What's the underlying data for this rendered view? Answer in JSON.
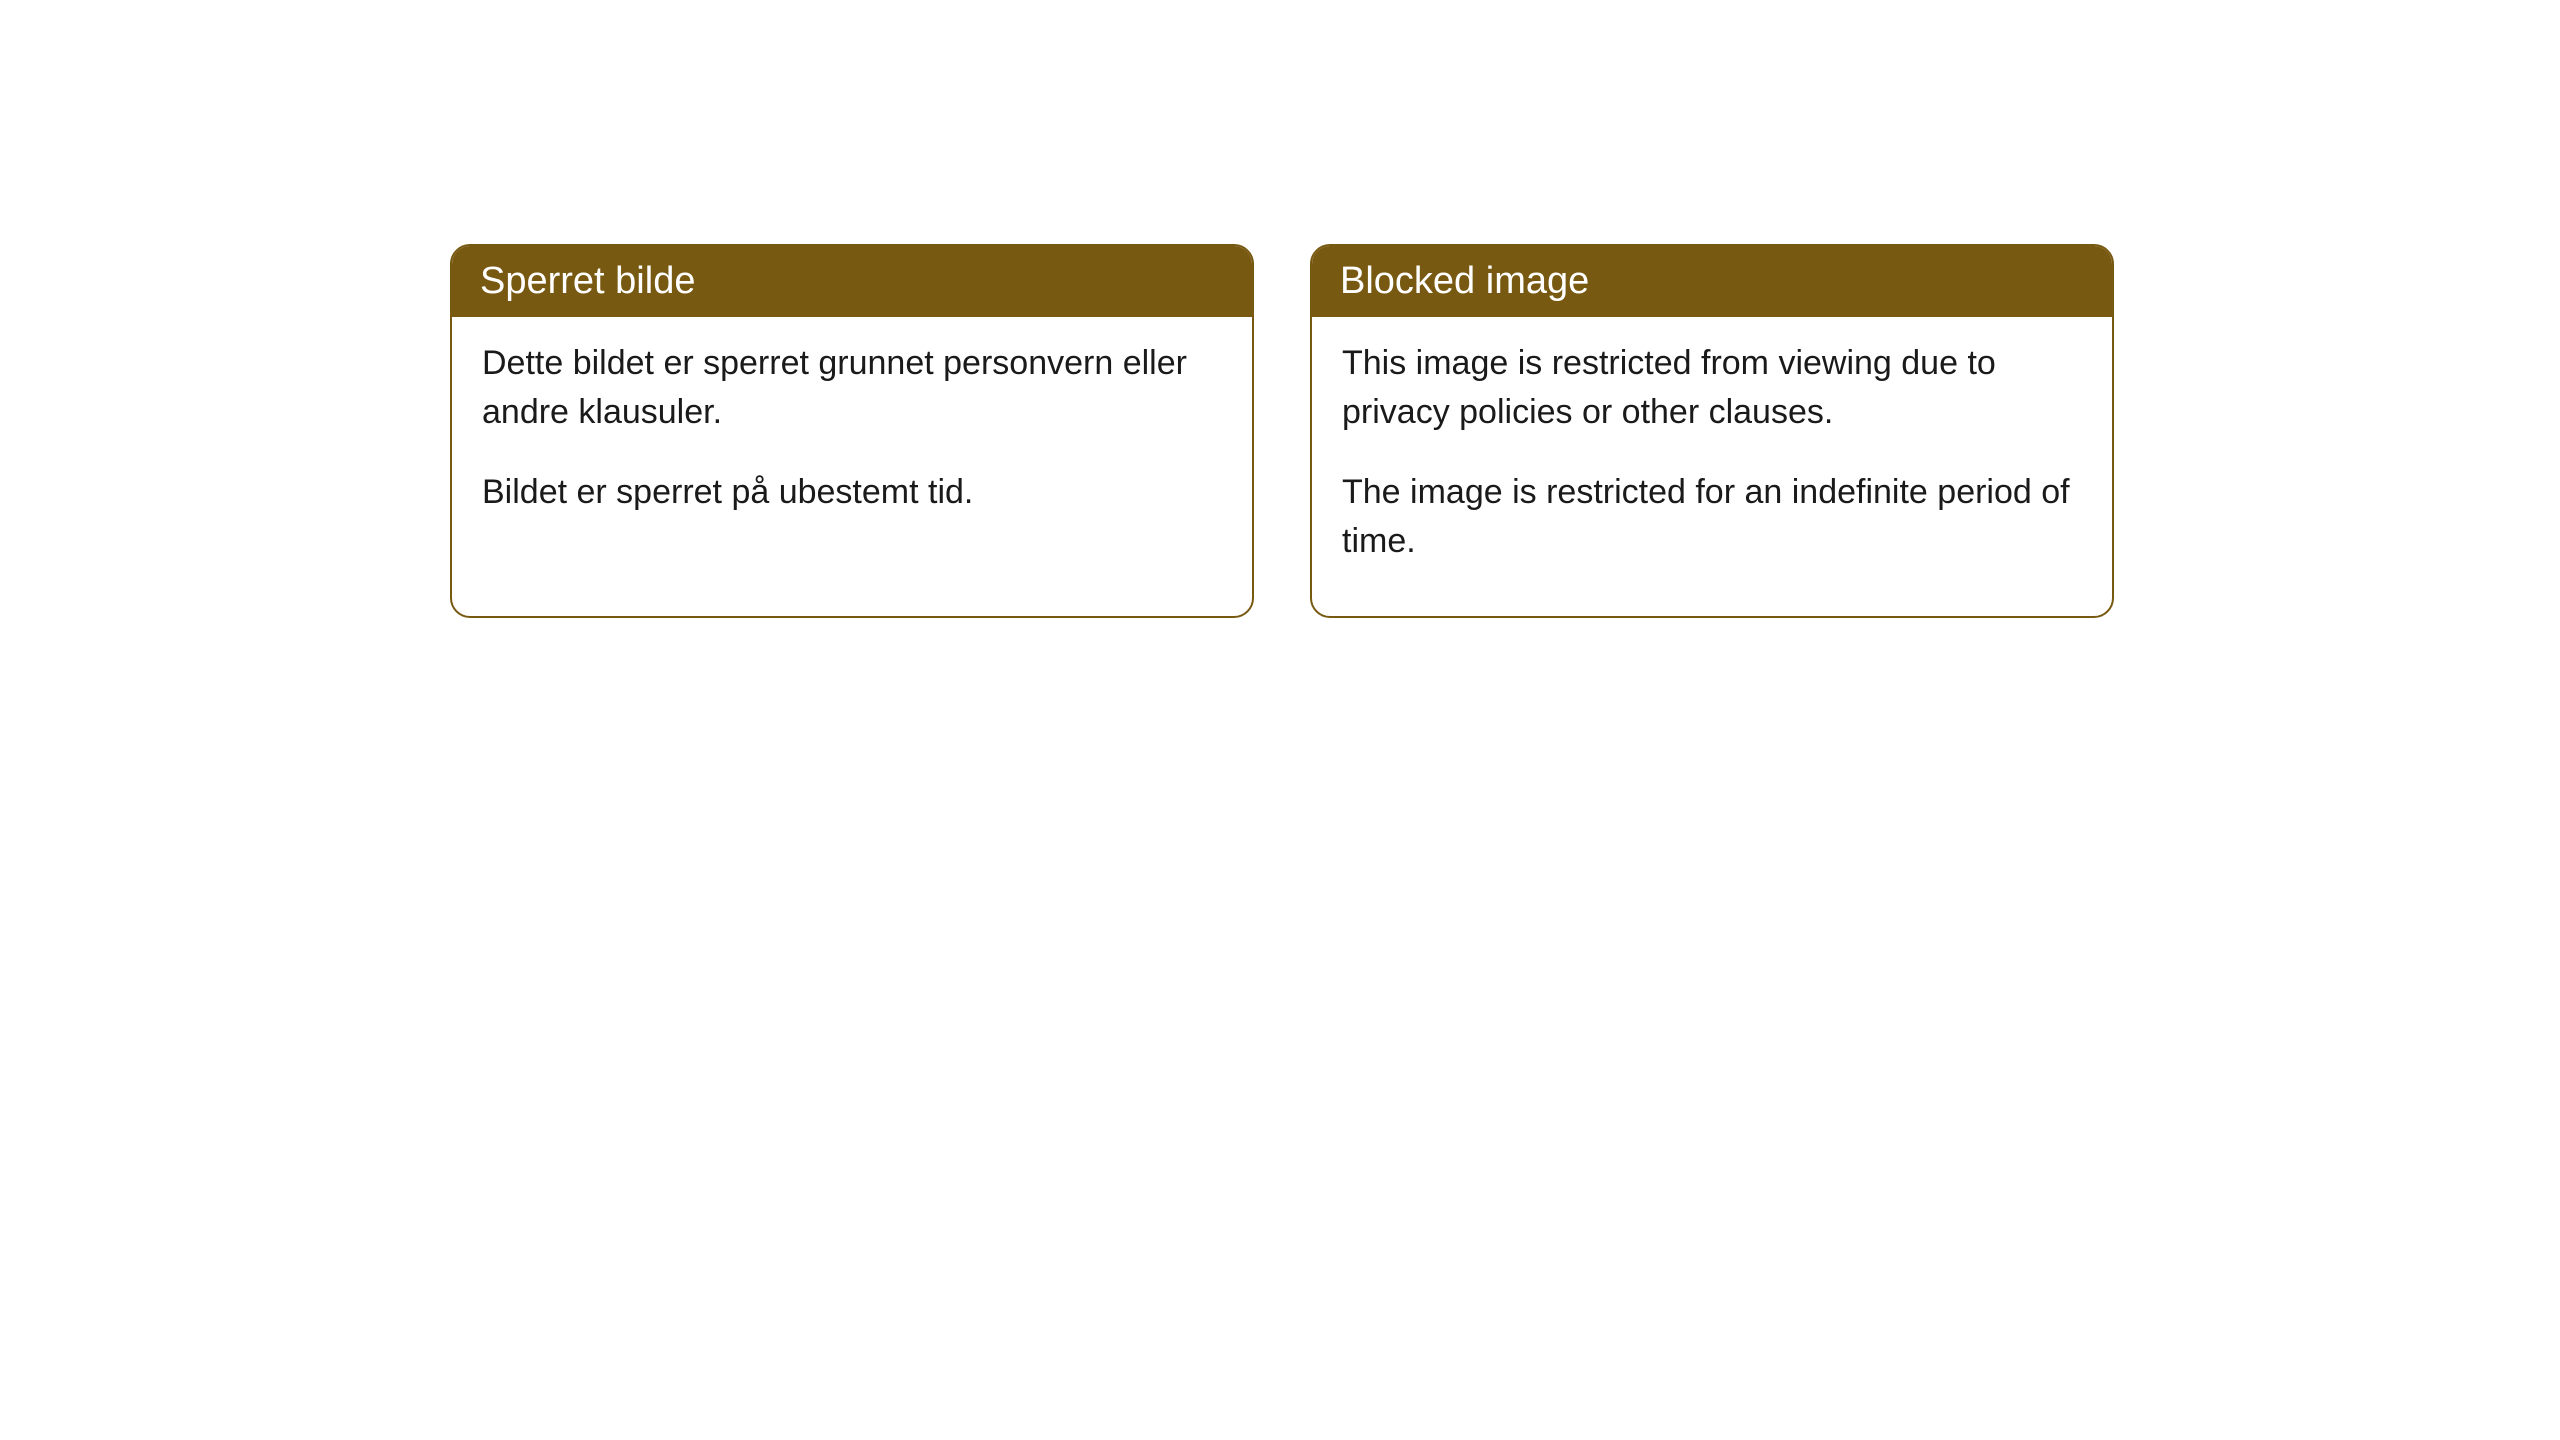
{
  "cards": [
    {
      "header": "Sperret bilde",
      "paragraph1": "Dette bildet er sperret grunnet personvern eller andre klausuler.",
      "paragraph2": "Bildet er sperret på ubestemt tid."
    },
    {
      "header": "Blocked image",
      "paragraph1": "This image is restricted from viewing due to privacy policies or other clauses.",
      "paragraph2": "The image is restricted for an indefinite period of time."
    }
  ],
  "styling": {
    "header_background": "#785911",
    "header_text_color": "#ffffff",
    "border_color": "#785911",
    "body_background": "#ffffff",
    "body_text_color": "#1a1a1a",
    "border_radius": 20,
    "header_fontsize": 38,
    "body_fontsize": 34
  }
}
